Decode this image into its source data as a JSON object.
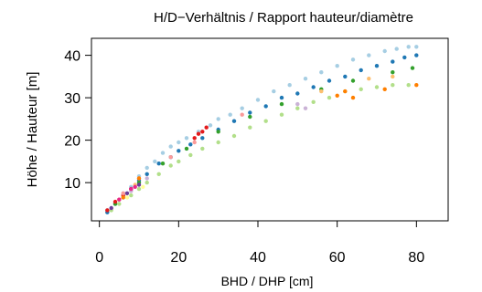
{
  "chart_data": {
    "type": "scatter",
    "title": "H/D−Verhältnis / Rapport hauteur/diamètre",
    "xlabel": "BHD / DHP [cm]",
    "ylabel": "Höhe / Hauteur [m]",
    "xlim": [
      -2,
      88
    ],
    "ylim": [
      1,
      44
    ],
    "xticks": [
      "0",
      "20",
      "40",
      "60",
      "80"
    ],
    "yticks": [
      "10",
      "20",
      "30",
      "40"
    ],
    "grid": false,
    "legend": "none",
    "colors": {
      "light_blue": "#a6cee3",
      "dark_blue": "#1f78b4",
      "light_green": "#b2df8a",
      "green": "#33a02c",
      "pink": "#fb9a99",
      "red": "#e31a1c",
      "light_orange": "#fdbf6f",
      "orange": "#ff7f00",
      "lavender": "#cab2d6",
      "purple": "#6a3d9a",
      "yellow": "#ffff99",
      "magenta": "#e7298a"
    },
    "series": [
      {
        "color": "#a6cee3",
        "x": [
          2,
          4,
          6,
          8,
          10,
          12,
          14,
          16,
          18,
          20,
          22,
          25,
          28,
          30,
          33,
          36,
          40,
          44,
          48,
          52,
          56,
          60,
          64,
          68,
          72,
          75,
          78,
          80
        ],
        "y": [
          3.5,
          5,
          7.5,
          9,
          11.5,
          13.5,
          15,
          17,
          18.5,
          19.5,
          20.5,
          22,
          23.5,
          25,
          26,
          27.5,
          29.5,
          31.5,
          33,
          34.5,
          36,
          37.5,
          39,
          40,
          41,
          41.5,
          42,
          42
        ]
      },
      {
        "color": "#1f78b4",
        "x": [
          2,
          4,
          6,
          8,
          10,
          12,
          15,
          18,
          20,
          23,
          26,
          30,
          34,
          38,
          42,
          46,
          50,
          54,
          58,
          62,
          66,
          70,
          74,
          77,
          80
        ],
        "y": [
          3,
          5,
          6.5,
          8.5,
          10.5,
          12,
          14.5,
          16,
          17.5,
          19,
          20.5,
          22.5,
          24.5,
          26.5,
          28,
          30,
          31,
          32.5,
          34,
          35,
          36.5,
          37.5,
          38.5,
          39.5,
          40
        ]
      },
      {
        "color": "#b2df8a",
        "x": [
          3,
          5,
          8,
          10,
          12,
          15,
          18,
          20,
          23,
          26,
          30,
          34,
          38,
          42,
          46,
          50,
          54,
          58,
          62,
          66,
          70,
          74,
          78
        ],
        "y": [
          3.5,
          5,
          7,
          8.5,
          10,
          12,
          14,
          15,
          16.5,
          18,
          19.5,
          21,
          23,
          24.5,
          26,
          27.5,
          29,
          30,
          31.5,
          32,
          32.5,
          33,
          33
        ]
      },
      {
        "color": "#33a02c",
        "x": [
          4,
          10,
          16,
          22,
          30,
          38,
          46,
          56,
          64,
          74,
          79
        ],
        "y": [
          5,
          10,
          14.5,
          18,
          22,
          25.5,
          28.5,
          32,
          34,
          36,
          37
        ]
      },
      {
        "color": "#e31a1c",
        "x": [
          2,
          4,
          6,
          8,
          24,
          25,
          26,
          27
        ],
        "y": [
          3.5,
          5.5,
          7,
          8.5,
          20.5,
          21.5,
          22,
          23
        ]
      },
      {
        "color": "#fb9a99",
        "x": [
          6,
          10,
          18,
          24,
          36
        ],
        "y": [
          7.5,
          11,
          16,
          19.5,
          26
        ]
      },
      {
        "color": "#ff7f00",
        "x": [
          6,
          10,
          60,
          62,
          64,
          72,
          80
        ],
        "y": [
          6.5,
          11,
          30.5,
          31.5,
          30,
          32,
          33
        ]
      },
      {
        "color": "#fdbf6f",
        "x": [
          5,
          9,
          56,
          68,
          74
        ],
        "y": [
          6,
          9.5,
          31.5,
          34.5,
          35
        ]
      },
      {
        "color": "#cab2d6",
        "x": [
          8,
          12,
          50,
          52
        ],
        "y": [
          8,
          11,
          28.5,
          27.5
        ]
      },
      {
        "color": "#6a3d9a",
        "x": [
          3,
          7,
          10
        ],
        "y": [
          4,
          7.5,
          9.5
        ]
      },
      {
        "color": "#e7298a",
        "x": [
          5,
          8,
          9
        ],
        "y": [
          6,
          8.5,
          9
        ]
      },
      {
        "color": "#ffff99",
        "x": [
          7,
          11
        ],
        "y": [
          6.5,
          9
        ]
      }
    ]
  }
}
